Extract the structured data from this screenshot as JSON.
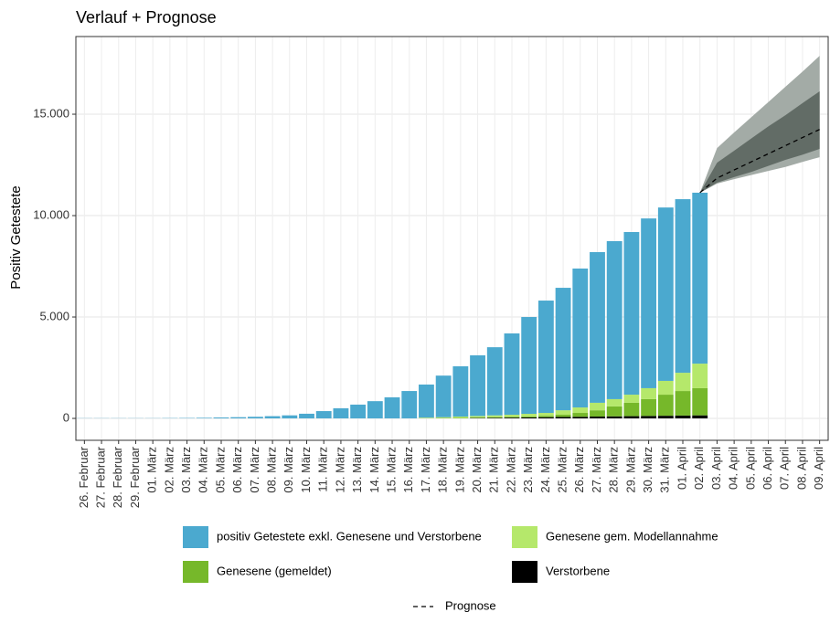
{
  "chart_data": {
    "type": "bar",
    "stacked": true,
    "title": "Verlauf + Prognose",
    "y_label": "Positiv Getestete",
    "categories": [
      "26. Februar",
      "27. Februar",
      "28. Februar",
      "29. Februar",
      "01. März",
      "02. März",
      "03. März",
      "04. März",
      "05. März",
      "06. März",
      "07. März",
      "08. März",
      "09. März",
      "10. März",
      "11. März",
      "12. März",
      "13. März",
      "14. März",
      "15. März",
      "16. März",
      "17. März",
      "18. März",
      "19. März",
      "20. März",
      "21. März",
      "22. März",
      "23. März",
      "24. März",
      "25. März",
      "26. März",
      "27. März",
      "28. März",
      "29. März",
      "30. März",
      "31. März",
      "01. April",
      "02. April",
      "03. April",
      "04. April",
      "05. April",
      "06. April",
      "07. April",
      "08. April",
      "09. April"
    ],
    "series": [
      {
        "name": "positiv Getestete exkl. Genesene und Verstorbene",
        "color": "#4ba9cf",
        "values": [
          10,
          10,
          10,
          10,
          10,
          15,
          20,
          30,
          45,
          60,
          80,
          110,
          150,
          230,
          360,
          500,
          680,
          850,
          1040,
          1350,
          1630,
          2050,
          2480,
          2990,
          3360,
          4010,
          4775,
          5540,
          6040,
          6850,
          7430,
          7790,
          8020,
          8370,
          8550,
          8560,
          8430,
          null,
          null,
          null,
          null,
          null,
          null,
          null
        ]
      },
      {
        "name": "Genesene gem. Modellannahme",
        "color": "#b5e86b",
        "values": [
          0,
          0,
          0,
          0,
          0,
          0,
          0,
          0,
          0,
          0,
          0,
          0,
          0,
          0,
          0,
          0,
          0,
          0,
          0,
          0,
          30,
          40,
          60,
          80,
          90,
          100,
          125,
          140,
          220,
          270,
          370,
          360,
          400,
          540,
          680,
          900,
          1210,
          null,
          null,
          null,
          null,
          null,
          null,
          null
        ]
      },
      {
        "name": "Genesene (gemeldet)",
        "color": "#76b82a",
        "values": [
          0,
          0,
          0,
          0,
          0,
          0,
          0,
          0,
          0,
          0,
          0,
          0,
          0,
          0,
          0,
          0,
          0,
          0,
          0,
          0,
          10,
          20,
          30,
          20,
          30,
          40,
          50,
          70,
          110,
          190,
          310,
          490,
          660,
          830,
          1040,
          1210,
          1340,
          null,
          null,
          null,
          null,
          null,
          null,
          null
        ]
      },
      {
        "name": "Verstorbene",
        "color": "#000000",
        "values": [
          0,
          0,
          0,
          0,
          0,
          0,
          0,
          0,
          0,
          0,
          0,
          0,
          0,
          0,
          0,
          0,
          0,
          0,
          0,
          0,
          0,
          0,
          0,
          20,
          30,
          40,
          50,
          60,
          70,
          80,
          90,
          100,
          110,
          120,
          130,
          140,
          150,
          null,
          null,
          null,
          null,
          null,
          null,
          null
        ]
      }
    ],
    "forecast": {
      "name": "Prognose",
      "color": "#000000",
      "values": [
        null,
        null,
        null,
        null,
        null,
        null,
        null,
        null,
        null,
        null,
        null,
        null,
        null,
        null,
        null,
        null,
        null,
        null,
        null,
        null,
        null,
        null,
        null,
        null,
        null,
        null,
        null,
        null,
        null,
        null,
        null,
        null,
        null,
        null,
        null,
        null,
        11130,
        11850,
        12250,
        12650,
        13050,
        13450,
        13850,
        14250
      ]
    },
    "forecast_bands": [
      {
        "color": "#a3aba6",
        "lower": [
          null,
          null,
          null,
          null,
          null,
          null,
          null,
          null,
          null,
          null,
          null,
          null,
          null,
          null,
          null,
          null,
          null,
          null,
          null,
          null,
          null,
          null,
          null,
          null,
          null,
          null,
          null,
          null,
          null,
          null,
          null,
          null,
          null,
          null,
          null,
          null,
          11130,
          11580,
          11800,
          12000,
          12200,
          12400,
          12650,
          12880
        ],
        "upper": [
          null,
          null,
          null,
          null,
          null,
          null,
          null,
          null,
          null,
          null,
          null,
          null,
          null,
          null,
          null,
          null,
          null,
          null,
          null,
          null,
          null,
          null,
          null,
          null,
          null,
          null,
          null,
          null,
          null,
          null,
          null,
          null,
          null,
          null,
          null,
          null,
          11130,
          13330,
          14100,
          14850,
          15600,
          16350,
          17100,
          17880
        ]
      },
      {
        "color": "#626c66",
        "lower": [
          null,
          null,
          null,
          null,
          null,
          null,
          null,
          null,
          null,
          null,
          null,
          null,
          null,
          null,
          null,
          null,
          null,
          null,
          null,
          null,
          null,
          null,
          null,
          null,
          null,
          null,
          null,
          null,
          null,
          null,
          null,
          null,
          null,
          null,
          null,
          null,
          11130,
          11620,
          11900,
          12150,
          12450,
          12750,
          13000,
          13290
        ],
        "upper": [
          null,
          null,
          null,
          null,
          null,
          null,
          null,
          null,
          null,
          null,
          null,
          null,
          null,
          null,
          null,
          null,
          null,
          null,
          null,
          null,
          null,
          null,
          null,
          null,
          null,
          null,
          null,
          null,
          null,
          null,
          null,
          null,
          null,
          null,
          null,
          null,
          11130,
          12610,
          13200,
          13800,
          14400,
          14950,
          15550,
          16130
        ]
      }
    ],
    "ylim": [
      -1080,
      18830
    ],
    "yticks": [
      0,
      {
        "value": 5000,
        "label": "5.000"
      },
      {
        "value": 10000,
        "label": "10.000"
      },
      {
        "value": 15000,
        "label": "15.000"
      }
    ],
    "grid": true
  }
}
